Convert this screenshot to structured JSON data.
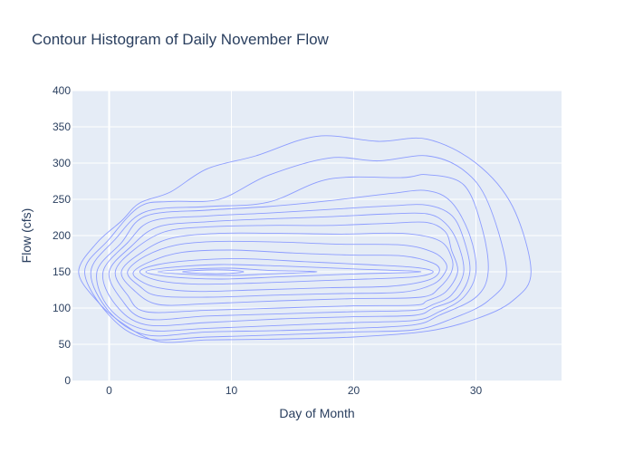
{
  "chart_data": {
    "type": "contour",
    "title": "Contour Histogram of Daily November Flow",
    "xlabel": "Day of Month",
    "ylabel": "Flow (cfs)",
    "xlim": [
      -3,
      37
    ],
    "ylim": [
      0,
      400
    ],
    "x_ticks": [
      "0",
      "10",
      "20",
      "30"
    ],
    "x_tick_values": [
      0,
      10,
      20,
      30
    ],
    "y_ticks": [
      "0",
      "50",
      "100",
      "150",
      "200",
      "250",
      "300",
      "350",
      "400"
    ],
    "y_tick_values": [
      0,
      50,
      100,
      150,
      200,
      250,
      300,
      350,
      400
    ],
    "grid": true,
    "line_color": "#8c9cff",
    "plot_background": "#e5ecf6",
    "contours": [
      {
        "level": 1,
        "points": [
          [
            -2.5,
            150
          ],
          [
            -1,
            190
          ],
          [
            1,
            220
          ],
          [
            2.5,
            245
          ],
          [
            5,
            260
          ],
          [
            8,
            292
          ],
          [
            12,
            310
          ],
          [
            17,
            337
          ],
          [
            22,
            330
          ],
          [
            26,
            333
          ],
          [
            30,
            300
          ],
          [
            33,
            240
          ],
          [
            34.5,
            150
          ],
          [
            33,
            110
          ],
          [
            30,
            85
          ],
          [
            26,
            68
          ],
          [
            20,
            60
          ],
          [
            13,
            57
          ],
          [
            8,
            56
          ],
          [
            4,
            54
          ],
          [
            1,
            80
          ],
          [
            -1,
            110
          ],
          [
            -2.5,
            150
          ]
        ]
      },
      {
        "level": 2,
        "points": [
          [
            -2,
            150
          ],
          [
            0,
            195
          ],
          [
            2.5,
            240
          ],
          [
            5,
            247
          ],
          [
            9,
            250
          ],
          [
            13,
            283
          ],
          [
            18,
            307
          ],
          [
            22,
            303
          ],
          [
            26,
            310
          ],
          [
            29,
            290
          ],
          [
            31,
            245
          ],
          [
            32.5,
            150
          ],
          [
            31,
            110
          ],
          [
            28,
            85
          ],
          [
            25,
            70
          ],
          [
            20,
            67
          ],
          [
            14,
            63
          ],
          [
            8,
            60
          ],
          [
            3,
            58
          ],
          [
            0,
            90
          ],
          [
            -2,
            150
          ]
        ]
      },
      {
        "level": 3,
        "points": [
          [
            -1.5,
            150
          ],
          [
            0.5,
            195
          ],
          [
            3,
            233
          ],
          [
            8,
            240
          ],
          [
            13,
            246
          ],
          [
            18,
            278
          ],
          [
            24,
            280
          ],
          [
            26,
            284
          ],
          [
            29,
            270
          ],
          [
            30.5,
            210
          ],
          [
            31,
            150
          ],
          [
            30,
            115
          ],
          [
            27,
            90
          ],
          [
            25,
            77
          ],
          [
            20,
            72
          ],
          [
            14,
            69
          ],
          [
            8,
            67
          ],
          [
            3,
            63
          ],
          [
            0,
            95
          ],
          [
            -1.5,
            150
          ]
        ]
      },
      {
        "level": 4,
        "points": [
          [
            -1,
            150
          ],
          [
            1,
            190
          ],
          [
            3,
            227
          ],
          [
            8,
            235
          ],
          [
            13,
            240
          ],
          [
            18,
            248
          ],
          [
            23,
            258
          ],
          [
            26,
            262
          ],
          [
            28,
            246
          ],
          [
            29.5,
            200
          ],
          [
            30,
            150
          ],
          [
            29,
            115
          ],
          [
            27,
            95
          ],
          [
            25,
            83
          ],
          [
            20,
            80
          ],
          [
            14,
            76
          ],
          [
            8,
            72
          ],
          [
            3,
            70
          ],
          [
            0,
            100
          ],
          [
            -1,
            150
          ]
        ]
      },
      {
        "level": 5,
        "points": [
          [
            -0.5,
            150
          ],
          [
            1.5,
            190
          ],
          [
            3.5,
            220
          ],
          [
            8,
            227
          ],
          [
            13,
            231
          ],
          [
            18,
            236
          ],
          [
            23,
            241
          ],
          [
            26,
            242
          ],
          [
            28,
            228
          ],
          [
            29,
            195
          ],
          [
            29.5,
            150
          ],
          [
            28.5,
            115
          ],
          [
            26.5,
            100
          ],
          [
            25,
            90
          ],
          [
            20,
            88
          ],
          [
            14,
            85
          ],
          [
            8,
            80
          ],
          [
            3,
            77
          ],
          [
            0.5,
            105
          ],
          [
            -0.5,
            150
          ]
        ]
      },
      {
        "level": 6,
        "points": [
          [
            0,
            150
          ],
          [
            1.8,
            185
          ],
          [
            4,
            212
          ],
          [
            8,
            219
          ],
          [
            13,
            223
          ],
          [
            18,
            226
          ],
          [
            23,
            230
          ],
          [
            26,
            230
          ],
          [
            27.5,
            217
          ],
          [
            28.5,
            190
          ],
          [
            29,
            150
          ],
          [
            28,
            118
          ],
          [
            26.5,
            105
          ],
          [
            25,
            97
          ],
          [
            20,
            95
          ],
          [
            14,
            92
          ],
          [
            8,
            89
          ],
          [
            3,
            85
          ],
          [
            1,
            112
          ],
          [
            0,
            150
          ]
        ]
      },
      {
        "level": 7,
        "points": [
          [
            0.5,
            150
          ],
          [
            2,
            180
          ],
          [
            4.5,
            205
          ],
          [
            8,
            212
          ],
          [
            13,
            214
          ],
          [
            18,
            214
          ],
          [
            23,
            217
          ],
          [
            26,
            218
          ],
          [
            27.5,
            205
          ],
          [
            28,
            180
          ],
          [
            28.5,
            150
          ],
          [
            27.5,
            122
          ],
          [
            26,
            110
          ],
          [
            25,
            104
          ],
          [
            20,
            103
          ],
          [
            14,
            100
          ],
          [
            8,
            97
          ],
          [
            3,
            95
          ],
          [
            1.5,
            118
          ],
          [
            0.5,
            150
          ]
        ]
      },
      {
        "level": 8,
        "points": [
          [
            1,
            150
          ],
          [
            2.5,
            175
          ],
          [
            5,
            196
          ],
          [
            9,
            203
          ],
          [
            14,
            203
          ],
          [
            19,
            202
          ],
          [
            24,
            203
          ],
          [
            27,
            193
          ],
          [
            28,
            170
          ],
          [
            28,
            150
          ],
          [
            27,
            128
          ],
          [
            25.5,
            115
          ],
          [
            20,
            113
          ],
          [
            14,
            110
          ],
          [
            8,
            106
          ],
          [
            4,
            105
          ],
          [
            2,
            125
          ],
          [
            1,
            150
          ]
        ]
      },
      {
        "level": 9,
        "points": [
          [
            1.5,
            150
          ],
          [
            3,
            172
          ],
          [
            5.5,
            187
          ],
          [
            9,
            192
          ],
          [
            14,
            191
          ],
          [
            19,
            188
          ],
          [
            24,
            187
          ],
          [
            26.5,
            177
          ],
          [
            27.5,
            163
          ],
          [
            27.5,
            150
          ],
          [
            26.5,
            133
          ],
          [
            24,
            122
          ],
          [
            19,
            120
          ],
          [
            14,
            118
          ],
          [
            8,
            115
          ],
          [
            4,
            117
          ],
          [
            2.5,
            130
          ],
          [
            1.5,
            150
          ]
        ]
      },
      {
        "level": 10,
        "points": [
          [
            2,
            150
          ],
          [
            3.5,
            165
          ],
          [
            6,
            177
          ],
          [
            10,
            180
          ],
          [
            15,
            176
          ],
          [
            20,
            173
          ],
          [
            24,
            172
          ],
          [
            26.5,
            162
          ],
          [
            27,
            150
          ],
          [
            26,
            138
          ],
          [
            23,
            130
          ],
          [
            18,
            128
          ],
          [
            12,
            125
          ],
          [
            7,
            123
          ],
          [
            4,
            128
          ],
          [
            2.5,
            138
          ],
          [
            2,
            150
          ]
        ]
      },
      {
        "level": 11,
        "points": [
          [
            2.5,
            150
          ],
          [
            4,
            160
          ],
          [
            7,
            166
          ],
          [
            11,
            168
          ],
          [
            16,
            164
          ],
          [
            21,
            160
          ],
          [
            25,
            156
          ],
          [
            26.5,
            150
          ],
          [
            25,
            143
          ],
          [
            21,
            140
          ],
          [
            16,
            137
          ],
          [
            11,
            134
          ],
          [
            7,
            133
          ],
          [
            4,
            138
          ],
          [
            2.5,
            150
          ]
        ]
      },
      {
        "level": 12,
        "points": [
          [
            3,
            150
          ],
          [
            5,
            156
          ],
          [
            9,
            160
          ],
          [
            14,
            158
          ],
          [
            20,
            154
          ],
          [
            25.5,
            150
          ],
          [
            20,
            147
          ],
          [
            14,
            143
          ],
          [
            9,
            140
          ],
          [
            5,
            143
          ],
          [
            3,
            150
          ]
        ]
      },
      {
        "level": 13,
        "points": [
          [
            4,
            150
          ],
          [
            7,
            154
          ],
          [
            10,
            155
          ],
          [
            13,
            152
          ],
          [
            17,
            150
          ],
          [
            13,
            147
          ],
          [
            10,
            145
          ],
          [
            7,
            146
          ],
          [
            4,
            150
          ]
        ]
      },
      {
        "level": 14,
        "points": [
          [
            6,
            150
          ],
          [
            8,
            152.5
          ],
          [
            9.5,
            152.5
          ],
          [
            11,
            150
          ],
          [
            9.5,
            147.5
          ],
          [
            8,
            147.5
          ],
          [
            6,
            150
          ]
        ]
      }
    ]
  }
}
